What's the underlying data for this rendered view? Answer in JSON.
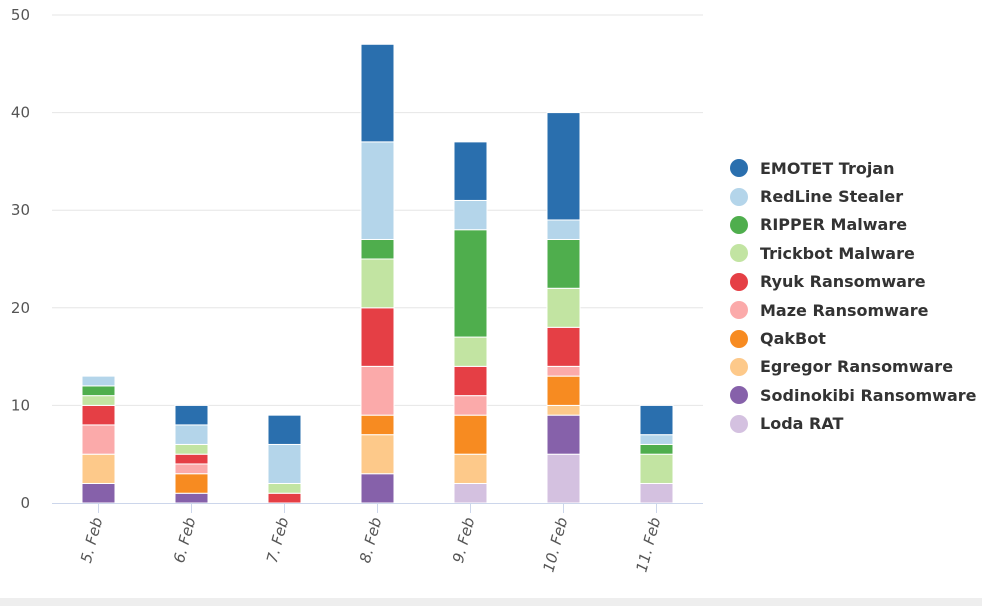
{
  "chart_data": {
    "type": "bar",
    "stacked": true,
    "title": "",
    "xlabel": "",
    "ylabel": "",
    "ylim": [
      0,
      50
    ],
    "yticks": [
      0,
      10,
      20,
      30,
      40,
      50
    ],
    "grid": true,
    "legend_position": "right",
    "categories": [
      "5. Feb",
      "6. Feb",
      "7. Feb",
      "8. Feb",
      "9. Feb",
      "10. Feb",
      "11. Feb"
    ],
    "series": [
      {
        "name": "Loda RAT",
        "color": "#d4c1e0",
        "values": [
          0,
          0,
          0,
          0,
          2,
          5,
          2
        ]
      },
      {
        "name": "Sodinokibi Ransomware",
        "color": "#8661aa",
        "values": [
          2,
          1,
          0,
          3,
          0,
          4,
          0
        ]
      },
      {
        "name": "Egregor Ransomware",
        "color": "#fdc98a",
        "values": [
          3,
          0,
          0,
          4,
          3,
          1,
          0
        ]
      },
      {
        "name": "QakBot",
        "color": "#f78b21",
        "values": [
          0,
          2,
          0,
          2,
          4,
          3,
          0
        ]
      },
      {
        "name": "Maze Ransomware",
        "color": "#fbaaaa",
        "values": [
          3,
          1,
          0,
          5,
          2,
          1,
          0
        ]
      },
      {
        "name": "Ryuk Ransomware",
        "color": "#e53f45",
        "values": [
          2,
          1,
          1,
          6,
          3,
          4,
          0
        ]
      },
      {
        "name": "Trickbot Malware",
        "color": "#c2e4a2",
        "values": [
          1,
          1,
          1,
          5,
          3,
          4,
          3
        ]
      },
      {
        "name": "RIPPER Malware",
        "color": "#4fae4d",
        "values": [
          1,
          0,
          0,
          2,
          11,
          5,
          1
        ]
      },
      {
        "name": "RedLine Stealer",
        "color": "#b4d5ea",
        "values": [
          1,
          2,
          4,
          10,
          3,
          2,
          1
        ]
      },
      {
        "name": "EMOTET Trojan",
        "color": "#2a6fae",
        "values": [
          0,
          2,
          3,
          10,
          6,
          11,
          3
        ]
      }
    ],
    "legend_order": [
      "EMOTET Trojan",
      "RedLine Stealer",
      "RIPPER Malware",
      "Trickbot Malware",
      "Ryuk Ransomware",
      "Maze Ransomware",
      "QakBot",
      "Egregor Ransomware",
      "Sodinokibi Ransomware",
      "Loda RAT"
    ]
  }
}
